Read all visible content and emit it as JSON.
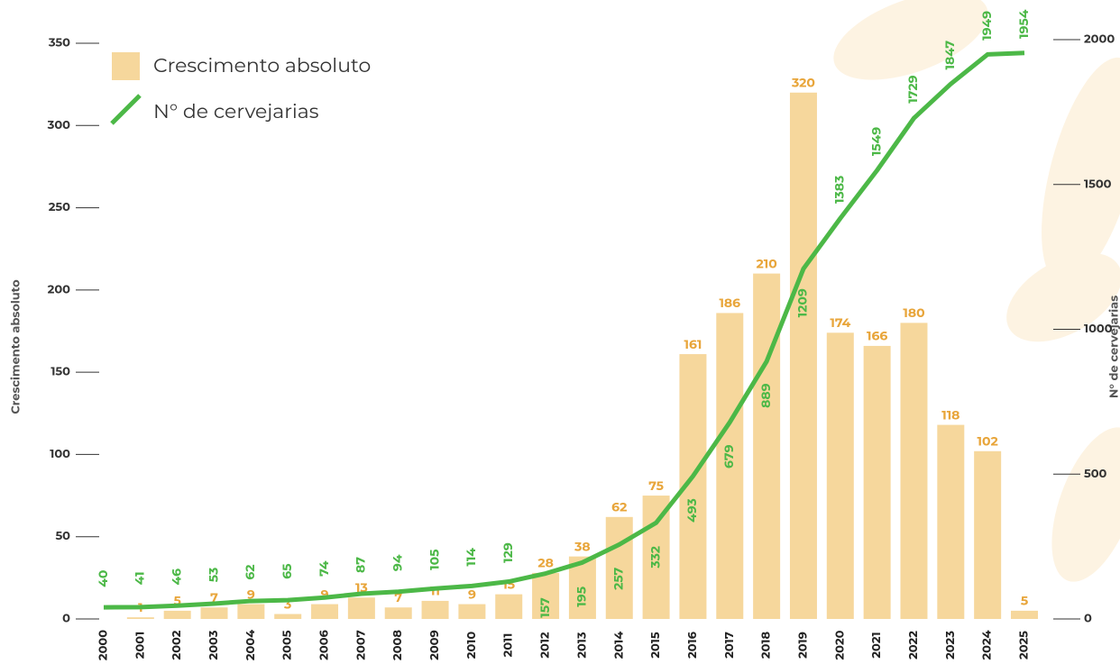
{
  "chart_data": {
    "type": "bar-line",
    "categories": [
      "2000",
      "2001",
      "2002",
      "2003",
      "2004",
      "2005",
      "2006",
      "2007",
      "2008",
      "2009",
      "2010",
      "2011",
      "2012",
      "2013",
      "2014",
      "2015",
      "2016",
      "2017",
      "2018",
      "2019",
      "2020",
      "2021",
      "2022",
      "2023",
      "2024",
      "2025"
    ],
    "series": [
      {
        "name": "Crescimento absoluto",
        "type": "bar",
        "color": "#f6d79c",
        "label_color": "#e8a53a",
        "values": [
          null,
          1,
          5,
          7,
          9,
          3,
          9,
          13,
          7,
          11,
          9,
          15,
          28,
          38,
          62,
          75,
          161,
          186,
          210,
          320,
          174,
          166,
          180,
          118,
          102,
          5
        ]
      },
      {
        "name": "N° de cervejarias",
        "type": "line",
        "axis": "y2",
        "color": "#4cb847",
        "values": [
          40,
          41,
          46,
          53,
          62,
          65,
          74,
          87,
          94,
          105,
          114,
          129,
          157,
          195,
          257,
          332,
          493,
          679,
          889,
          1209,
          1383,
          1549,
          1729,
          1847,
          1949,
          1954
        ]
      }
    ],
    "ylabel": "Crescimento absoluto",
    "y2label": "N° de cervejarias",
    "ylim": [
      0,
      350
    ],
    "yticks": [
      0,
      50,
      100,
      150,
      200,
      250,
      300,
      350
    ],
    "y2lim": [
      0,
      2000
    ],
    "y2ticks": [
      0,
      500,
      1000,
      1500,
      2000
    ]
  }
}
